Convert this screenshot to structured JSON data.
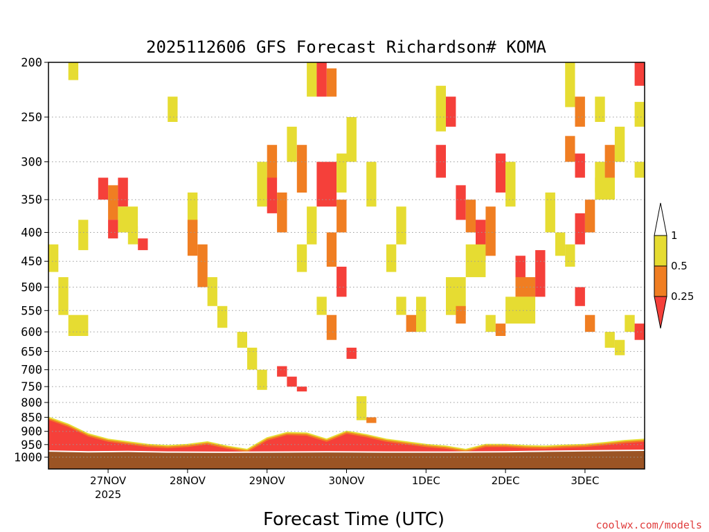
{
  "chart_data": {
    "type": "heatmap",
    "title": "2025112606 GFS Forecast Richardson# KOMA",
    "xlabel": "Forecast Time (UTC)",
    "ylabel": "",
    "credit": "coolwx.com/models",
    "y_axis": {
      "scale": "log-pressure",
      "unit": "hPa",
      "range": [
        1000,
        200
      ],
      "ticks": [
        200,
        250,
        300,
        350,
        400,
        450,
        500,
        550,
        600,
        650,
        700,
        750,
        800,
        850,
        900,
        950,
        1000
      ]
    },
    "x_axis": {
      "range": [
        "2025-11-26T06",
        "2025-12-03T18"
      ],
      "ticks": [
        {
          "label": "27NOV",
          "sub": "2025",
          "time": "2025-11-27T00"
        },
        {
          "label": "28NOV",
          "sub": "",
          "time": "2025-11-28T00"
        },
        {
          "label": "29NOV",
          "sub": "",
          "time": "2025-11-29T00"
        },
        {
          "label": "30NOV",
          "sub": "",
          "time": "2025-11-30T00"
        },
        {
          "label": "1DEC",
          "sub": "",
          "time": "2025-12-01T00"
        },
        {
          "label": "2DEC",
          "sub": "",
          "time": "2025-12-02T00"
        },
        {
          "label": "3DEC",
          "sub": "",
          "time": "2025-12-03T00"
        }
      ]
    },
    "grid": "horizontal-dotted",
    "legend": {
      "placement": "right",
      "type": "colorbar",
      "labels": [
        "1",
        "0.5",
        "0.25"
      ],
      "bins": [
        {
          "range": [
            0.5,
            1
          ],
          "color": "#e6dc32"
        },
        {
          "range": [
            0.25,
            0.5
          ],
          "color": "#f07e22"
        },
        {
          "range": [
            0,
            0.25
          ],
          "color": "#f5403a"
        }
      ]
    },
    "colors": {
      "low": "#f5403a",
      "mid": "#f07e22",
      "high": "#e6dc32",
      "ground": "#9b5424",
      "hatch": "#b8703a"
    },
    "surface_pressure": 980,
    "surface_series": [
      {
        "time": "2025-11-26T06",
        "p": 978
      },
      {
        "time": "2025-11-26T18",
        "p": 981
      },
      {
        "time": "2025-11-27T06",
        "p": 980
      },
      {
        "time": "2025-11-27T18",
        "p": 982
      },
      {
        "time": "2025-11-28T12",
        "p": 983
      },
      {
        "time": "2025-11-29T00",
        "p": 982
      },
      {
        "time": "2025-11-29T18",
        "p": 981
      },
      {
        "time": "2025-11-30T12",
        "p": 982
      },
      {
        "time": "2025-12-01T06",
        "p": 982
      },
      {
        "time": "2025-12-02T00",
        "p": 981
      },
      {
        "time": "2025-12-02T18",
        "p": 978
      },
      {
        "time": "2025-12-03T18",
        "p": 975
      }
    ],
    "low_level_band": [
      {
        "time": "2025-11-26T06",
        "top": 855,
        "bottom": 978
      },
      {
        "time": "2025-11-26T12",
        "top": 880,
        "bottom": 979
      },
      {
        "time": "2025-11-26T18",
        "top": 915,
        "bottom": 980
      },
      {
        "time": "2025-11-27T00",
        "top": 935,
        "bottom": 980
      },
      {
        "time": "2025-11-27T06",
        "top": 945,
        "bottom": 981
      },
      {
        "time": "2025-11-27T12",
        "top": 955,
        "bottom": 981
      },
      {
        "time": "2025-11-27T18",
        "top": 960,
        "bottom": 982
      },
      {
        "time": "2025-11-28T00",
        "top": 955,
        "bottom": 982
      },
      {
        "time": "2025-11-28T06",
        "top": 945,
        "bottom": 982
      },
      {
        "time": "2025-11-28T12",
        "top": 962,
        "bottom": 983
      },
      {
        "time": "2025-11-28T18",
        "top": 975,
        "bottom": 983
      },
      {
        "time": "2025-11-29T00",
        "top": 930,
        "bottom": 982
      },
      {
        "time": "2025-11-29T06",
        "top": 910,
        "bottom": 982
      },
      {
        "time": "2025-11-29T12",
        "top": 912,
        "bottom": 981
      },
      {
        "time": "2025-11-29T18",
        "top": 935,
        "bottom": 981
      },
      {
        "time": "2025-11-30T00",
        "top": 905,
        "bottom": 981
      },
      {
        "time": "2025-11-30T06",
        "top": 918,
        "bottom": 981
      },
      {
        "time": "2025-11-30T12",
        "top": 935,
        "bottom": 982
      },
      {
        "time": "2025-11-30T18",
        "top": 945,
        "bottom": 982
      },
      {
        "time": "2025-12-01T00",
        "top": 955,
        "bottom": 982
      },
      {
        "time": "2025-12-01T06",
        "top": 962,
        "bottom": 982
      },
      {
        "time": "2025-12-01T12",
        "top": 975,
        "bottom": 982
      },
      {
        "time": "2025-12-01T18",
        "top": 955,
        "bottom": 981
      },
      {
        "time": "2025-12-02T00",
        "top": 955,
        "bottom": 981
      },
      {
        "time": "2025-12-02T06",
        "top": 960,
        "bottom": 980
      },
      {
        "time": "2025-12-02T12",
        "top": 962,
        "bottom": 979
      },
      {
        "time": "2025-12-02T18",
        "top": 958,
        "bottom": 978
      },
      {
        "time": "2025-12-03T00",
        "top": 955,
        "bottom": 977
      },
      {
        "time": "2025-12-03T06",
        "top": 948,
        "bottom": 976
      },
      {
        "time": "2025-12-03T12",
        "top": 940,
        "bottom": 975
      },
      {
        "time": "2025-12-03T18",
        "top": 935,
        "bottom": 975
      }
    ],
    "cells": [
      {
        "t0": "2025-11-26T12",
        "t1": "2025-11-26T15",
        "p0": 200,
        "p1": 215,
        "v": "high"
      },
      {
        "t0": "2025-11-26T06",
        "t1": "2025-11-26T09",
        "p0": 420,
        "p1": 470,
        "v": "high"
      },
      {
        "t0": "2025-11-26T09",
        "t1": "2025-11-26T12",
        "p0": 480,
        "p1": 560,
        "v": "high"
      },
      {
        "t0": "2025-11-26T12",
        "t1": "2025-11-26T18",
        "p0": 560,
        "p1": 610,
        "v": "high"
      },
      {
        "t0": "2025-11-26T15",
        "t1": "2025-11-26T18",
        "p0": 380,
        "p1": 430,
        "v": "high"
      },
      {
        "t0": "2025-11-26T21",
        "t1": "2025-11-27T00",
        "p0": 320,
        "p1": 350,
        "v": "low"
      },
      {
        "t0": "2025-11-27T00",
        "t1": "2025-11-27T03",
        "p0": 330,
        "p1": 380,
        "v": "mid"
      },
      {
        "t0": "2025-11-27T03",
        "t1": "2025-11-27T06",
        "p0": 320,
        "p1": 360,
        "v": "low"
      },
      {
        "t0": "2025-11-27T03",
        "t1": "2025-11-27T09",
        "p0": 360,
        "p1": 400,
        "v": "high"
      },
      {
        "t0": "2025-11-27T00",
        "t1": "2025-11-27T03",
        "p0": 380,
        "p1": 410,
        "v": "low"
      },
      {
        "t0": "2025-11-27T06",
        "t1": "2025-11-27T09",
        "p0": 390,
        "p1": 420,
        "v": "high"
      },
      {
        "t0": "2025-11-27T09",
        "t1": "2025-11-27T12",
        "p0": 410,
        "p1": 430,
        "v": "low"
      },
      {
        "t0": "2025-11-27T18",
        "t1": "2025-11-27T21",
        "p0": 230,
        "p1": 255,
        "v": "high"
      },
      {
        "t0": "2025-11-28T00",
        "t1": "2025-11-28T03",
        "p0": 340,
        "p1": 400,
        "v": "high"
      },
      {
        "t0": "2025-11-28T00",
        "t1": "2025-11-28T03",
        "p0": 380,
        "p1": 440,
        "v": "mid"
      },
      {
        "t0": "2025-11-28T03",
        "t1": "2025-11-28T06",
        "p0": 420,
        "p1": 500,
        "v": "mid"
      },
      {
        "t0": "2025-11-28T06",
        "t1": "2025-11-28T09",
        "p0": 480,
        "p1": 540,
        "v": "high"
      },
      {
        "t0": "2025-11-28T09",
        "t1": "2025-11-28T12",
        "p0": 540,
        "p1": 590,
        "v": "high"
      },
      {
        "t0": "2025-11-28T15",
        "t1": "2025-11-28T18",
        "p0": 600,
        "p1": 640,
        "v": "high"
      },
      {
        "t0": "2025-11-28T18",
        "t1": "2025-11-28T21",
        "p0": 640,
        "p1": 700,
        "v": "high"
      },
      {
        "t0": "2025-11-28T21",
        "t1": "2025-11-29T00",
        "p0": 700,
        "p1": 760,
        "v": "high"
      },
      {
        "t0": "2025-11-29T03",
        "t1": "2025-11-29T06",
        "p0": 690,
        "p1": 720,
        "v": "low"
      },
      {
        "t0": "2025-11-29T06",
        "t1": "2025-11-29T09",
        "p0": 720,
        "p1": 750,
        "v": "low"
      },
      {
        "t0": "2025-11-29T09",
        "t1": "2025-11-29T12",
        "p0": 750,
        "p1": 765,
        "v": "low"
      },
      {
        "t0": "2025-11-28T21",
        "t1": "2025-11-29T00",
        "p0": 300,
        "p1": 360,
        "v": "high"
      },
      {
        "t0": "2025-11-29T00",
        "t1": "2025-11-29T03",
        "p0": 280,
        "p1": 320,
        "v": "mid"
      },
      {
        "t0": "2025-11-29T00",
        "t1": "2025-11-29T03",
        "p0": 320,
        "p1": 370,
        "v": "low"
      },
      {
        "t0": "2025-11-29T03",
        "t1": "2025-11-29T06",
        "p0": 340,
        "p1": 400,
        "v": "mid"
      },
      {
        "t0": "2025-11-29T06",
        "t1": "2025-11-29T09",
        "p0": 260,
        "p1": 300,
        "v": "high"
      },
      {
        "t0": "2025-11-29T09",
        "t1": "2025-11-29T12",
        "p0": 280,
        "p1": 340,
        "v": "mid"
      },
      {
        "t0": "2025-11-29T12",
        "t1": "2025-11-29T15",
        "p0": 200,
        "p1": 230,
        "v": "high"
      },
      {
        "t0": "2025-11-29T15",
        "t1": "2025-11-29T18",
        "p0": 200,
        "p1": 230,
        "v": "low"
      },
      {
        "t0": "2025-11-29T18",
        "t1": "2025-11-29T21",
        "p0": 205,
        "p1": 230,
        "v": "mid"
      },
      {
        "t0": "2025-11-29T15",
        "t1": "2025-11-29T21",
        "p0": 300,
        "p1": 360,
        "v": "low"
      },
      {
        "t0": "2025-11-29T21",
        "t1": "2025-11-30T00",
        "p0": 290,
        "p1": 340,
        "v": "high"
      },
      {
        "t0": "2025-11-29T18",
        "t1": "2025-11-29T21",
        "p0": 400,
        "p1": 460,
        "v": "mid"
      },
      {
        "t0": "2025-11-29T21",
        "t1": "2025-11-30T00",
        "p0": 460,
        "p1": 520,
        "v": "low"
      },
      {
        "t0": "2025-11-29T15",
        "t1": "2025-11-29T18",
        "p0": 520,
        "p1": 560,
        "v": "high"
      },
      {
        "t0": "2025-11-29T18",
        "t1": "2025-11-29T21",
        "p0": 560,
        "p1": 620,
        "v": "mid"
      },
      {
        "t0": "2025-11-30T00",
        "t1": "2025-11-30T03",
        "p0": 640,
        "p1": 670,
        "v": "low"
      },
      {
        "t0": "2025-11-30T03",
        "t1": "2025-11-30T06",
        "p0": 780,
        "p1": 860,
        "v": "high"
      },
      {
        "t0": "2025-11-30T06",
        "t1": "2025-11-30T09",
        "p0": 850,
        "p1": 870,
        "v": "mid"
      },
      {
        "t0": "2025-12-01T06",
        "t1": "2025-12-01T09",
        "p0": 230,
        "p1": 260,
        "v": "low"
      },
      {
        "t0": "2025-12-01T03",
        "t1": "2025-12-01T06",
        "p0": 220,
        "p1": 265,
        "v": "high"
      },
      {
        "t0": "2025-12-01T03",
        "t1": "2025-12-01T06",
        "p0": 280,
        "p1": 320,
        "v": "low"
      },
      {
        "t0": "2025-12-01T09",
        "t1": "2025-12-01T12",
        "p0": 330,
        "p1": 380,
        "v": "low"
      },
      {
        "t0": "2025-12-01T12",
        "t1": "2025-12-01T15",
        "p0": 350,
        "p1": 400,
        "v": "mid"
      },
      {
        "t0": "2025-12-01T15",
        "t1": "2025-12-01T18",
        "p0": 380,
        "p1": 450,
        "v": "low"
      },
      {
        "t0": "2025-12-01T18",
        "t1": "2025-12-01T21",
        "p0": 360,
        "p1": 440,
        "v": "mid"
      },
      {
        "t0": "2025-12-01T21",
        "t1": "2025-12-02T00",
        "p0": 290,
        "p1": 340,
        "v": "low"
      },
      {
        "t0": "2025-12-02T00",
        "t1": "2025-12-02T03",
        "p0": 300,
        "p1": 360,
        "v": "high"
      },
      {
        "t0": "2025-12-01T12",
        "t1": "2025-12-01T18",
        "p0": 420,
        "p1": 480,
        "v": "high"
      },
      {
        "t0": "2025-12-02T03",
        "t1": "2025-12-02T06",
        "p0": 440,
        "p1": 490,
        "v": "low"
      },
      {
        "t0": "2025-12-02T03",
        "t1": "2025-12-02T09",
        "p0": 480,
        "p1": 520,
        "v": "mid"
      },
      {
        "t0": "2025-12-02T09",
        "t1": "2025-12-02T12",
        "p0": 430,
        "p1": 520,
        "v": "low"
      },
      {
        "t0": "2025-12-02T00",
        "t1": "2025-12-02T09",
        "p0": 520,
        "p1": 580,
        "v": "high"
      },
      {
        "t0": "2025-12-01T06",
        "t1": "2025-12-01T12",
        "p0": 480,
        "p1": 560,
        "v": "high"
      },
      {
        "t0": "2025-12-01T09",
        "t1": "2025-12-01T12",
        "p0": 540,
        "p1": 580,
        "v": "mid"
      },
      {
        "t0": "2025-12-01T18",
        "t1": "2025-12-01T21",
        "p0": 560,
        "p1": 600,
        "v": "high"
      },
      {
        "t0": "2025-12-01T21",
        "t1": "2025-12-02T00",
        "p0": 580,
        "p1": 610,
        "v": "mid"
      },
      {
        "t0": "2025-12-02T12",
        "t1": "2025-12-02T15",
        "p0": 340,
        "p1": 400,
        "v": "high"
      },
      {
        "t0": "2025-12-02T15",
        "t1": "2025-12-02T18",
        "p0": 400,
        "p1": 440,
        "v": "high"
      },
      {
        "t0": "2025-12-02T18",
        "t1": "2025-12-02T21",
        "p0": 200,
        "p1": 240,
        "v": "high"
      },
      {
        "t0": "2025-12-02T21",
        "t1": "2025-12-03T00",
        "p0": 230,
        "p1": 260,
        "v": "mid"
      },
      {
        "t0": "2025-12-02T18",
        "t1": "2025-12-02T21",
        "p0": 270,
        "p1": 300,
        "v": "mid"
      },
      {
        "t0": "2025-12-02T21",
        "t1": "2025-12-03T00",
        "p0": 290,
        "p1": 320,
        "v": "low"
      },
      {
        "t0": "2025-12-02T21",
        "t1": "2025-12-03T00",
        "p0": 370,
        "p1": 420,
        "v": "low"
      },
      {
        "t0": "2025-12-02T18",
        "t1": "2025-12-02T21",
        "p0": 420,
        "p1": 460,
        "v": "high"
      },
      {
        "t0": "2025-12-02T21",
        "t1": "2025-12-03T00",
        "p0": 500,
        "p1": 540,
        "v": "low"
      },
      {
        "t0": "2025-12-03T00",
        "t1": "2025-12-03T03",
        "p0": 350,
        "p1": 400,
        "v": "mid"
      },
      {
        "t0": "2025-12-03T03",
        "t1": "2025-12-03T06",
        "p0": 300,
        "p1": 340,
        "v": "high"
      },
      {
        "t0": "2025-12-03T06",
        "t1": "2025-12-03T09",
        "p0": 280,
        "p1": 320,
        "v": "mid"
      },
      {
        "t0": "2025-12-03T03",
        "t1": "2025-12-03T09",
        "p0": 320,
        "p1": 350,
        "v": "high"
      },
      {
        "t0": "2025-12-03T09",
        "t1": "2025-12-03T12",
        "p0": 260,
        "p1": 300,
        "v": "high"
      },
      {
        "t0": "2025-12-03T03",
        "t1": "2025-12-03T06",
        "p0": 230,
        "p1": 255,
        "v": "high"
      },
      {
        "t0": "2025-12-03T00",
        "t1": "2025-12-03T03",
        "p0": 560,
        "p1": 600,
        "v": "mid"
      },
      {
        "t0": "2025-12-03T06",
        "t1": "2025-12-03T09",
        "p0": 600,
        "p1": 640,
        "v": "high"
      },
      {
        "t0": "2025-12-03T09",
        "t1": "2025-12-03T12",
        "p0": 620,
        "p1": 660,
        "v": "high"
      },
      {
        "t0": "2025-12-03T12",
        "t1": "2025-12-03T15",
        "p0": 560,
        "p1": 600,
        "v": "high"
      },
      {
        "t0": "2025-12-03T15",
        "t1": "2025-12-03T18",
        "p0": 580,
        "p1": 620,
        "v": "low"
      },
      {
        "t0": "2025-12-03T15",
        "t1": "2025-12-03T18",
        "p0": 200,
        "p1": 220,
        "v": "low"
      },
      {
        "t0": "2025-12-03T15",
        "t1": "2025-12-03T18",
        "p0": 235,
        "p1": 260,
        "v": "high"
      },
      {
        "t0": "2025-12-03T15",
        "t1": "2025-12-03T18",
        "p0": 300,
        "p1": 320,
        "v": "high"
      },
      {
        "t0": "2025-11-30T12",
        "t1": "2025-11-30T15",
        "p0": 420,
        "p1": 470,
        "v": "high"
      },
      {
        "t0": "2025-11-30T15",
        "t1": "2025-11-30T18",
        "p0": 520,
        "p1": 560,
        "v": "high"
      },
      {
        "t0": "2025-11-30T21",
        "t1": "2025-12-01T00",
        "p0": 520,
        "p1": 600,
        "v": "high"
      },
      {
        "t0": "2025-11-30T18",
        "t1": "2025-11-30T21",
        "p0": 560,
        "p1": 600,
        "v": "mid"
      },
      {
        "t0": "2025-11-30T00",
        "t1": "2025-11-30T03",
        "p0": 250,
        "p1": 300,
        "v": "high"
      },
      {
        "t0": "2025-11-30T06",
        "t1": "2025-11-30T09",
        "p0": 300,
        "p1": 360,
        "v": "high"
      },
      {
        "t0": "2025-11-30T15",
        "t1": "2025-11-30T18",
        "p0": 360,
        "p1": 420,
        "v": "high"
      },
      {
        "t0": "2025-11-29T12",
        "t1": "2025-11-29T15",
        "p0": 360,
        "p1": 420,
        "v": "high"
      },
      {
        "t0": "2025-11-29T09",
        "t1": "2025-11-29T12",
        "p0": 420,
        "p1": 470,
        "v": "high"
      },
      {
        "t0": "2025-11-29T21",
        "t1": "2025-11-30T00",
        "p0": 350,
        "p1": 400,
        "v": "mid"
      }
    ]
  }
}
